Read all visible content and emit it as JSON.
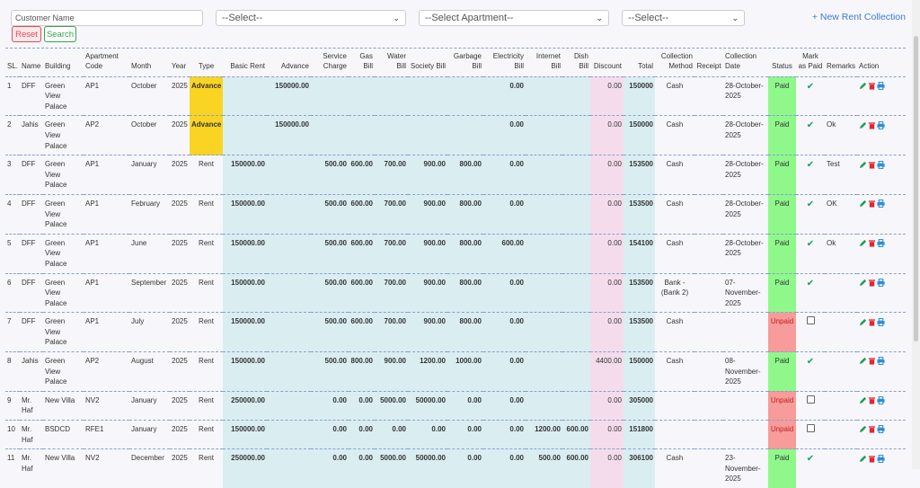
{
  "filters": {
    "customer_placeholder": "Customer Name",
    "select1": "--Select--",
    "apartment_select": "--Select Apartment--",
    "select3": "--Select--",
    "reset_label": "Reset",
    "search_label": "Search",
    "new_link": "+ New Rent Collection"
  },
  "columns": [
    "SL.",
    "Name",
    "Building",
    "Apartment Code",
    "Month",
    "Year",
    "Type",
    "Basic Rent",
    "Advance",
    "Service Charge",
    "Gas Bill",
    "Water Bill",
    "Society Bill",
    "Garbage Bill",
    "Electricity Bill",
    "Internet Bill",
    "Dish Bill",
    "Discount",
    "Total",
    "Collection Method",
    "Receipt",
    "Collection Date",
    "Status",
    "Mark as Paid",
    "Remarks",
    "Action"
  ],
  "rows": [
    {
      "sl": "1",
      "name": "DFF",
      "building": "Green View Palace",
      "apt": "AP1",
      "month": "October",
      "year": "2025",
      "type": "Advance",
      "basic": "",
      "advance": "150000.00",
      "service": "",
      "gas": "",
      "water": "",
      "society": "",
      "garbage": "",
      "electricity": "0.00",
      "internet": "",
      "dish": "",
      "discount": "0.00",
      "total": "150000",
      "method": "Cash",
      "receipt": "",
      "date": "28-October-2025",
      "status": "Paid",
      "mark": "check",
      "remarks": ""
    },
    {
      "sl": "2",
      "name": "Jahis",
      "building": "Green View Palace",
      "apt": "AP2",
      "month": "October",
      "year": "2025",
      "type": "Advance",
      "basic": "",
      "advance": "150000.00",
      "service": "",
      "gas": "",
      "water": "",
      "society": "",
      "garbage": "",
      "electricity": "0.00",
      "internet": "",
      "dish": "",
      "discount": "0.00",
      "total": "150000",
      "method": "Cash",
      "receipt": "",
      "date": "28-October-2025",
      "status": "Paid",
      "mark": "check",
      "remarks": "Ok"
    },
    {
      "sl": "3",
      "name": "DFF",
      "building": "Green View Palace",
      "apt": "AP1",
      "month": "January",
      "year": "2025",
      "type": "Rent",
      "basic": "150000.00",
      "advance": "",
      "service": "500.00",
      "gas": "600.00",
      "water": "700.00",
      "society": "900.00",
      "garbage": "800.00",
      "electricity": "0.00",
      "internet": "",
      "dish": "",
      "discount": "0.00",
      "total": "153500",
      "method": "Cash",
      "receipt": "",
      "date": "28-October-2025",
      "status": "Paid",
      "mark": "check",
      "remarks": "Test"
    },
    {
      "sl": "4",
      "name": "DFF",
      "building": "Green View Palace",
      "apt": "AP1",
      "month": "February",
      "year": "2025",
      "type": "Rent",
      "basic": "150000.00",
      "advance": "",
      "service": "500.00",
      "gas": "600.00",
      "water": "700.00",
      "society": "900.00",
      "garbage": "800.00",
      "electricity": "0.00",
      "internet": "",
      "dish": "",
      "discount": "0.00",
      "total": "153500",
      "method": "Cash",
      "receipt": "",
      "date": "28-October-2025",
      "status": "Paid",
      "mark": "check",
      "remarks": "OK"
    },
    {
      "sl": "5",
      "name": "DFF",
      "building": "Green View Palace",
      "apt": "AP1",
      "month": "June",
      "year": "2025",
      "type": "Rent",
      "basic": "150000.00",
      "advance": "",
      "service": "500.00",
      "gas": "600.00",
      "water": "700.00",
      "society": "900.00",
      "garbage": "800.00",
      "electricity": "600.00",
      "internet": "",
      "dish": "",
      "discount": "0.00",
      "total": "154100",
      "method": "Cash",
      "receipt": "",
      "date": "28-October-2025",
      "status": "Paid",
      "mark": "check",
      "remarks": "Ok"
    },
    {
      "sl": "6",
      "name": "DFF",
      "building": "Green View Palace",
      "apt": "AP1",
      "month": "September",
      "year": "2025",
      "type": "Rent",
      "basic": "150000.00",
      "advance": "",
      "service": "500.00",
      "gas": "600.00",
      "water": "700.00",
      "society": "900.00",
      "garbage": "800.00",
      "electricity": "0.00",
      "internet": "",
      "dish": "",
      "discount": "0.00",
      "total": "153500",
      "method": "Bank - (Bank 2)",
      "receipt": "",
      "date": "07-November-2025",
      "status": "Paid",
      "mark": "check",
      "remarks": ""
    },
    {
      "sl": "7",
      "name": "DFF",
      "building": "Green View Palace",
      "apt": "AP1",
      "month": "July",
      "year": "2025",
      "type": "Rent",
      "basic": "150000.00",
      "advance": "",
      "service": "500.00",
      "gas": "600.00",
      "water": "700.00",
      "society": "900.00",
      "garbage": "800.00",
      "electricity": "0.00",
      "internet": "",
      "dish": "",
      "discount": "0.00",
      "total": "153500",
      "method": "Cash",
      "receipt": "",
      "date": "",
      "status": "Unpaid",
      "mark": "box",
      "remarks": ""
    },
    {
      "sl": "8",
      "name": "Jahis",
      "building": "Green View Palace",
      "apt": "AP2",
      "month": "August",
      "year": "2025",
      "type": "Rent",
      "basic": "150000.00",
      "advance": "",
      "service": "500.00",
      "gas": "800.00",
      "water": "900.00",
      "society": "1200.00",
      "garbage": "1000.00",
      "electricity": "0.00",
      "internet": "",
      "dish": "",
      "discount": "4400.00",
      "total": "150000",
      "method": "Cash",
      "receipt": "",
      "date": "08-November-2025",
      "status": "Paid",
      "mark": "check",
      "remarks": ""
    },
    {
      "sl": "9",
      "name": "Mr. Haf",
      "building": "New Villa",
      "apt": "NV2",
      "month": "January",
      "year": "2025",
      "type": "Rent",
      "basic": "250000.00",
      "advance": "",
      "service": "0.00",
      "gas": "0.00",
      "water": "5000.00",
      "society": "50000.00",
      "garbage": "0.00",
      "electricity": "0.00",
      "internet": "",
      "dish": "",
      "discount": "0.00",
      "total": "305000",
      "method": "",
      "receipt": "",
      "date": "",
      "status": "Unpaid",
      "mark": "box",
      "remarks": ""
    },
    {
      "sl": "10",
      "name": "Mr. Haf",
      "building": "BSDCD",
      "apt": "RFE1",
      "month": "January",
      "year": "2025",
      "type": "Rent",
      "basic": "150000.00",
      "advance": "",
      "service": "0.00",
      "gas": "0.00",
      "water": "0.00",
      "society": "0.00",
      "garbage": "0.00",
      "electricity": "0.00",
      "internet": "1200.00",
      "dish": "600.00",
      "discount": "0.00",
      "total": "151800",
      "method": "",
      "receipt": "",
      "date": "",
      "status": "Unpaid",
      "mark": "box",
      "remarks": ""
    },
    {
      "sl": "11",
      "name": "Mr. Haf",
      "building": "New Villa",
      "apt": "NV2",
      "month": "December",
      "year": "2025",
      "type": "Rent",
      "basic": "250000.00",
      "advance": "",
      "service": "0.00",
      "gas": "0.00",
      "water": "5000.00",
      "society": "50000.00",
      "garbage": "0.00",
      "electricity": "0.00",
      "internet": "500.00",
      "dish": "600.00",
      "discount": "0.00",
      "total": "306100",
      "method": "Cash",
      "receipt": "",
      "date": "23-November-2025",
      "status": "Paid",
      "mark": "check",
      "remarks": ""
    }
  ],
  "colors": {
    "paid": "#8ef98a",
    "unpaid": "#f79b9b",
    "advance": "#f9d423",
    "bill_cols": "#daeef2",
    "discount_col": "#f5dced",
    "edit": "#18a05a",
    "delete": "#e0282e",
    "print": "#2a8fd8"
  },
  "icons": {
    "mark_paid": "check-icon",
    "mark_unpaid": "checkbox",
    "actions": [
      "edit-icon",
      "delete-icon",
      "print-icon"
    ]
  }
}
